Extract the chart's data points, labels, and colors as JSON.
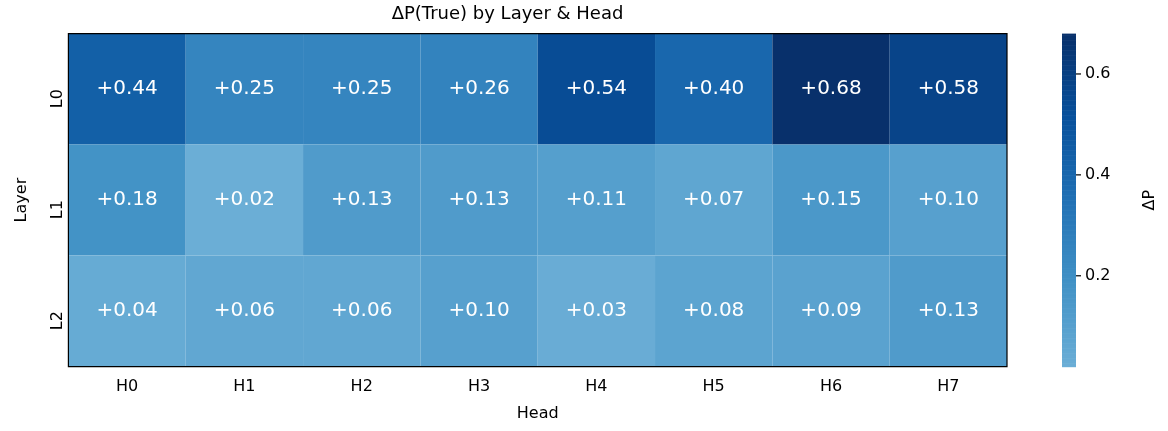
{
  "chart_data": {
    "type": "heatmap",
    "title": "ΔP(True) by Layer & Head",
    "xlabel": "Head",
    "ylabel": "Layer",
    "clabel": "ΔP",
    "categories": [
      "H0",
      "H1",
      "H2",
      "H3",
      "H4",
      "H5",
      "H6",
      "H7"
    ],
    "y_categories": [
      "L0",
      "L1",
      "L2"
    ],
    "cells": [
      [
        0.44,
        0.25,
        0.25,
        0.26,
        0.54,
        0.4,
        0.68,
        0.58
      ],
      [
        0.18,
        0.02,
        0.13,
        0.13,
        0.11,
        0.07,
        0.15,
        0.1
      ],
      [
        0.04,
        0.06,
        0.06,
        0.1,
        0.03,
        0.08,
        0.09,
        0.13
      ]
    ],
    "cell_labels": [
      [
        "+0.44",
        "+0.25",
        "+0.25",
        "+0.26",
        "+0.54",
        "+0.40",
        "+0.68",
        "+0.58"
      ],
      [
        "+0.18",
        "+0.02",
        "+0.13",
        "+0.13",
        "+0.11",
        "+0.07",
        "+0.15",
        "+0.10"
      ],
      [
        "+0.04",
        "+0.06",
        "+0.06",
        "+0.10",
        "+0.03",
        "+0.08",
        "+0.09",
        "+0.13"
      ]
    ],
    "colors": [
      "#6baed6",
      "#4292c6",
      "#2171b5",
      "#08519c",
      "#08306b"
    ],
    "clim": [
      0.02,
      0.68
    ],
    "cticks": [
      0.2,
      0.4,
      0.6
    ]
  }
}
